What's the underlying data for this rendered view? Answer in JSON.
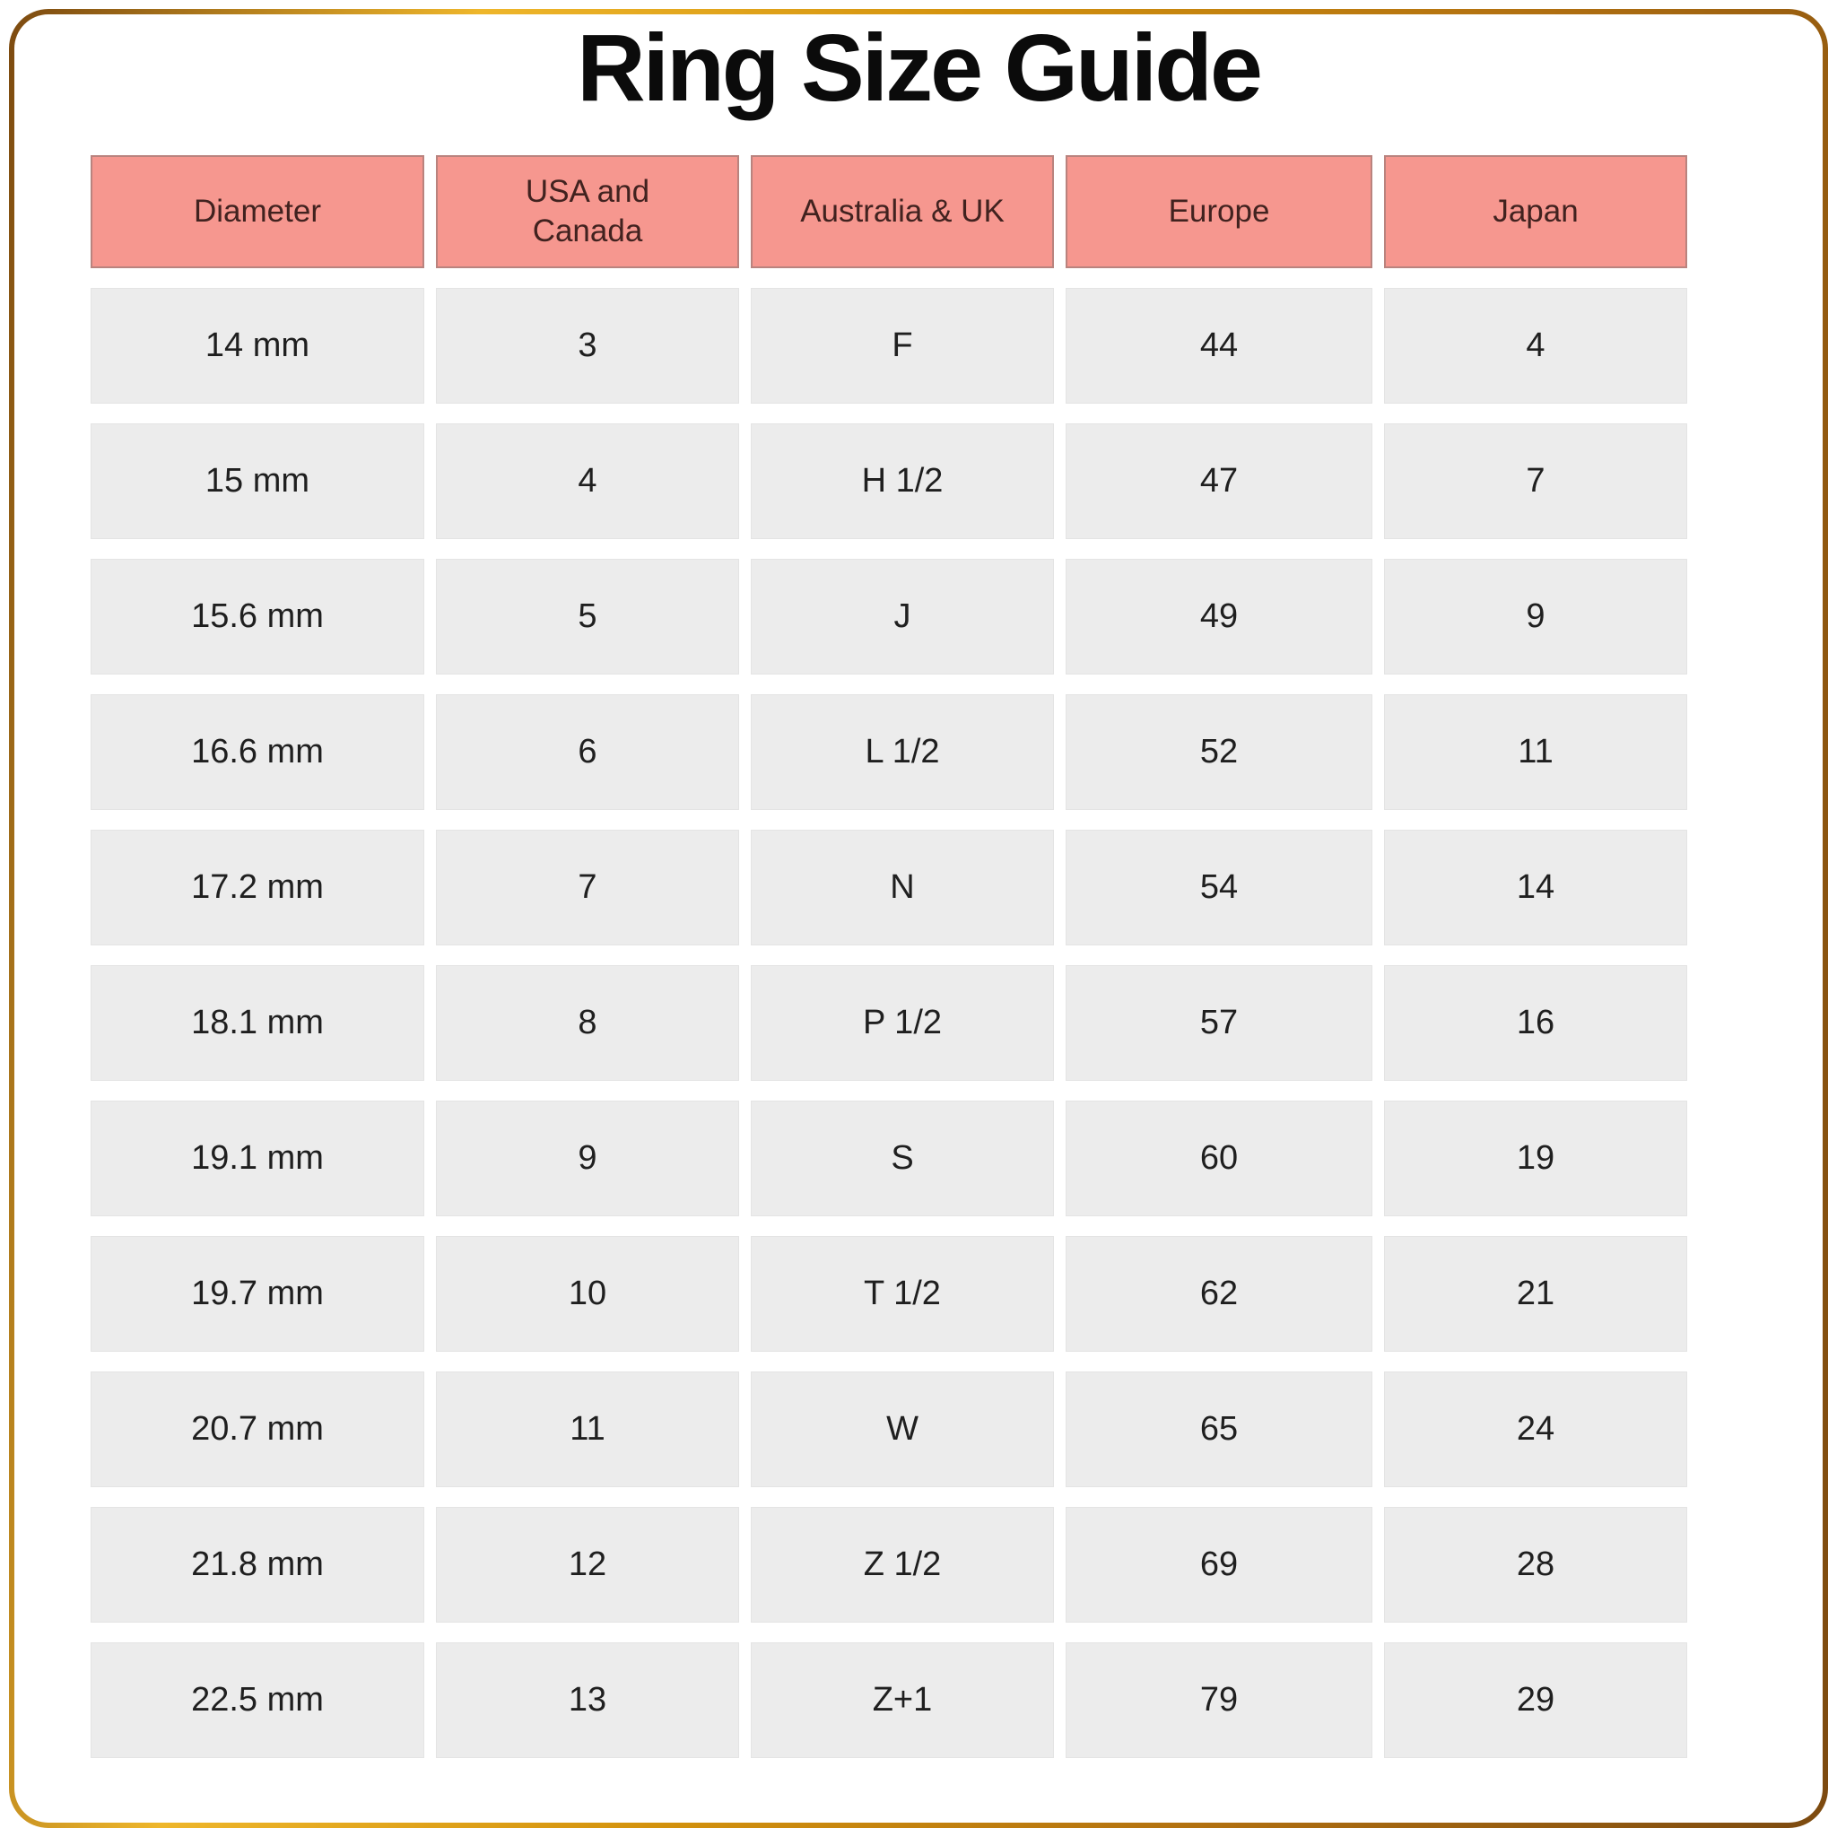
{
  "title": "Ring Size Guide",
  "table": {
    "headers": [
      "Diameter",
      "USA and\nCanada",
      "Australia & UK",
      "Europe",
      "Japan"
    ],
    "rows": [
      [
        "14 mm",
        "3",
        "F",
        "44",
        "4"
      ],
      [
        "15 mm",
        "4",
        "H 1/2",
        "47",
        "7"
      ],
      [
        "15.6 mm",
        "5",
        "J",
        "49",
        "9"
      ],
      [
        "16.6 mm",
        "6",
        "L 1/2",
        "52",
        "11"
      ],
      [
        "17.2 mm",
        "7",
        "N",
        "54",
        "14"
      ],
      [
        "18.1 mm",
        "8",
        "P 1/2",
        "57",
        "16"
      ],
      [
        "19.1 mm",
        "9",
        "S",
        "60",
        "19"
      ],
      [
        "19.7 mm",
        "10",
        "T 1/2",
        "62",
        "21"
      ],
      [
        "20.7 mm",
        "11",
        "W",
        "65",
        "24"
      ],
      [
        "21.8 mm",
        "12",
        "Z 1/2",
        "69",
        "28"
      ],
      [
        "22.5 mm",
        "13",
        "Z+1",
        "79",
        "29"
      ]
    ]
  },
  "colors": {
    "header_bg": "#f6978f",
    "header_border": "#b9837e",
    "header_text": "#41221f",
    "cell_bg": "#ececec",
    "cell_text": "#1f1f1f",
    "border_gold_light": "#eeb62b",
    "border_gold_dark": "#7c4a10"
  }
}
